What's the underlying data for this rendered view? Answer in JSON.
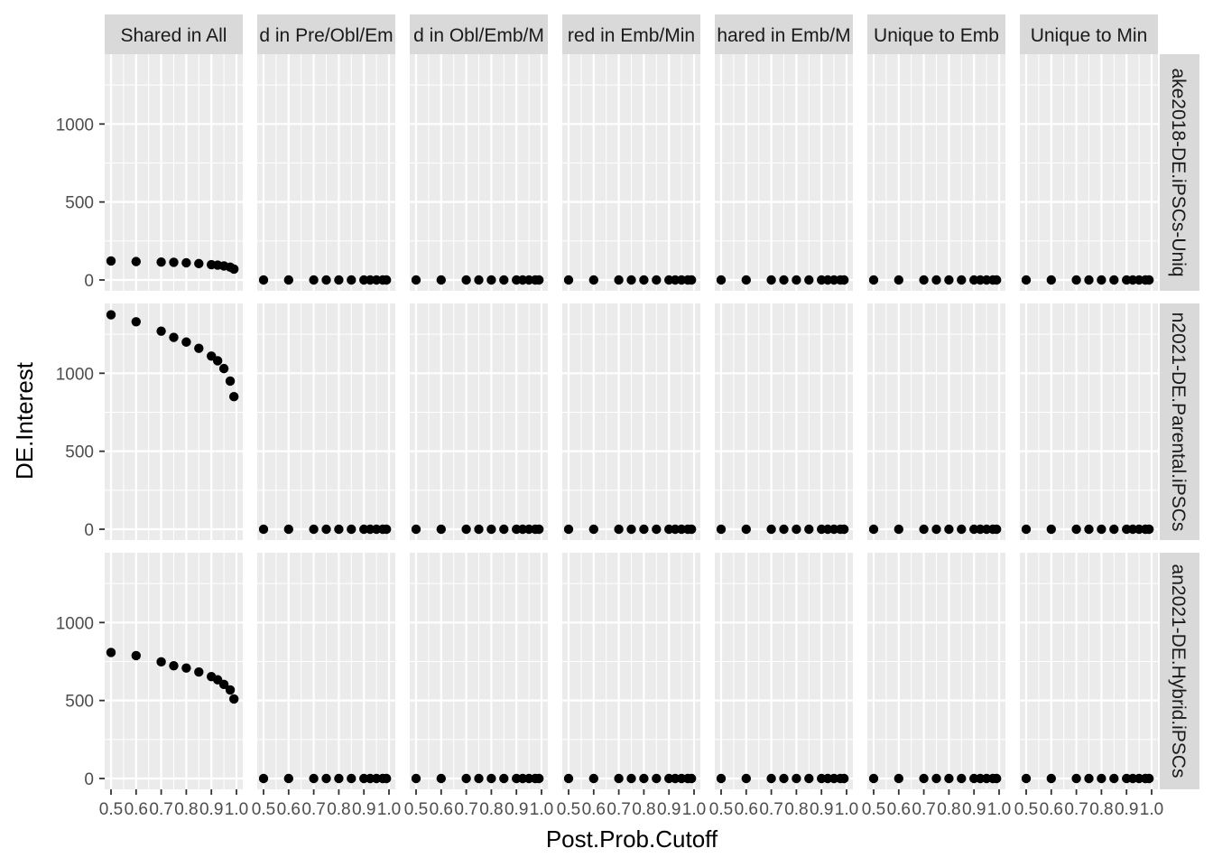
{
  "chart_data": {
    "type": "scatter",
    "facet_layout": "grid",
    "xlabel": "Post.Prob.Cutoff",
    "ylabel": "DE.Interest",
    "x_ticks": [
      "0.5",
      "0.6",
      "0.7",
      "0.8",
      "0.9",
      "1.0"
    ],
    "y_ticks": [
      "0",
      "500",
      "1000"
    ],
    "x_range": [
      0.5,
      1.0
    ],
    "y_range": [
      0,
      1400
    ],
    "grid": true,
    "legend": "none",
    "colors": {
      "panel_bg": "#ebebeb",
      "strip_bg": "#d9d9d9",
      "grid": "#ffffff",
      "point": "#000000"
    },
    "column_strips": [
      "Shared in All",
      "d in Pre/Obl/Em",
      "d in Obl/Emb/M",
      "red in Emb/Min",
      "hared in Emb/M",
      "Unique to Emb",
      "Unique to Min"
    ],
    "row_strips": [
      "ake2018-DE.iPSCs-Uniq",
      "n2021-DE.Parental.iPSCs",
      "an2021-DE.Hybrid.iPSCs"
    ],
    "x": [
      0.5,
      0.6,
      0.7,
      0.75,
      0.8,
      0.85,
      0.9,
      0.925,
      0.95,
      0.975,
      0.99
    ],
    "panels": [
      [
        [
          122,
          118,
          115,
          113,
          110,
          105,
          98,
          95,
          90,
          82,
          70
        ],
        [
          0,
          0,
          0,
          0,
          0,
          0,
          0,
          0,
          0,
          0,
          0
        ],
        [
          0,
          0,
          0,
          0,
          0,
          0,
          0,
          0,
          0,
          0,
          0
        ],
        [
          0,
          0,
          0,
          0,
          0,
          0,
          0,
          0,
          0,
          0,
          0
        ],
        [
          0,
          0,
          0,
          0,
          0,
          0,
          0,
          0,
          0,
          0,
          0
        ],
        [
          0,
          0,
          0,
          0,
          0,
          0,
          0,
          0,
          0,
          0,
          0
        ],
        [
          0,
          0,
          0,
          0,
          0,
          0,
          0,
          0,
          0,
          0,
          0
        ]
      ],
      [
        [
          1375,
          1330,
          1270,
          1230,
          1200,
          1160,
          1110,
          1080,
          1030,
          950,
          850
        ],
        [
          0,
          0,
          0,
          0,
          0,
          0,
          0,
          0,
          0,
          0,
          0
        ],
        [
          0,
          0,
          0,
          0,
          0,
          0,
          0,
          0,
          0,
          0,
          0
        ],
        [
          0,
          0,
          0,
          0,
          0,
          0,
          0,
          0,
          0,
          0,
          0
        ],
        [
          0,
          0,
          0,
          0,
          0,
          0,
          0,
          0,
          0,
          0,
          0
        ],
        [
          0,
          0,
          0,
          0,
          0,
          0,
          0,
          0,
          0,
          0,
          0
        ],
        [
          0,
          0,
          0,
          0,
          0,
          0,
          0,
          0,
          0,
          0,
          0
        ]
      ],
      [
        [
          808,
          788,
          748,
          723,
          708,
          683,
          653,
          633,
          603,
          568,
          510
        ],
        [
          0,
          0,
          0,
          0,
          0,
          0,
          0,
          0,
          0,
          0,
          0
        ],
        [
          0,
          0,
          0,
          0,
          0,
          0,
          0,
          0,
          0,
          0,
          0
        ],
        [
          0,
          0,
          0,
          0,
          0,
          0,
          0,
          0,
          0,
          0,
          0
        ],
        [
          0,
          0,
          0,
          0,
          0,
          0,
          0,
          0,
          0,
          0,
          0
        ],
        [
          0,
          0,
          0,
          0,
          0,
          0,
          0,
          0,
          0,
          0,
          0
        ],
        [
          0,
          0,
          0,
          0,
          0,
          0,
          0,
          0,
          0,
          0,
          0
        ]
      ]
    ]
  }
}
